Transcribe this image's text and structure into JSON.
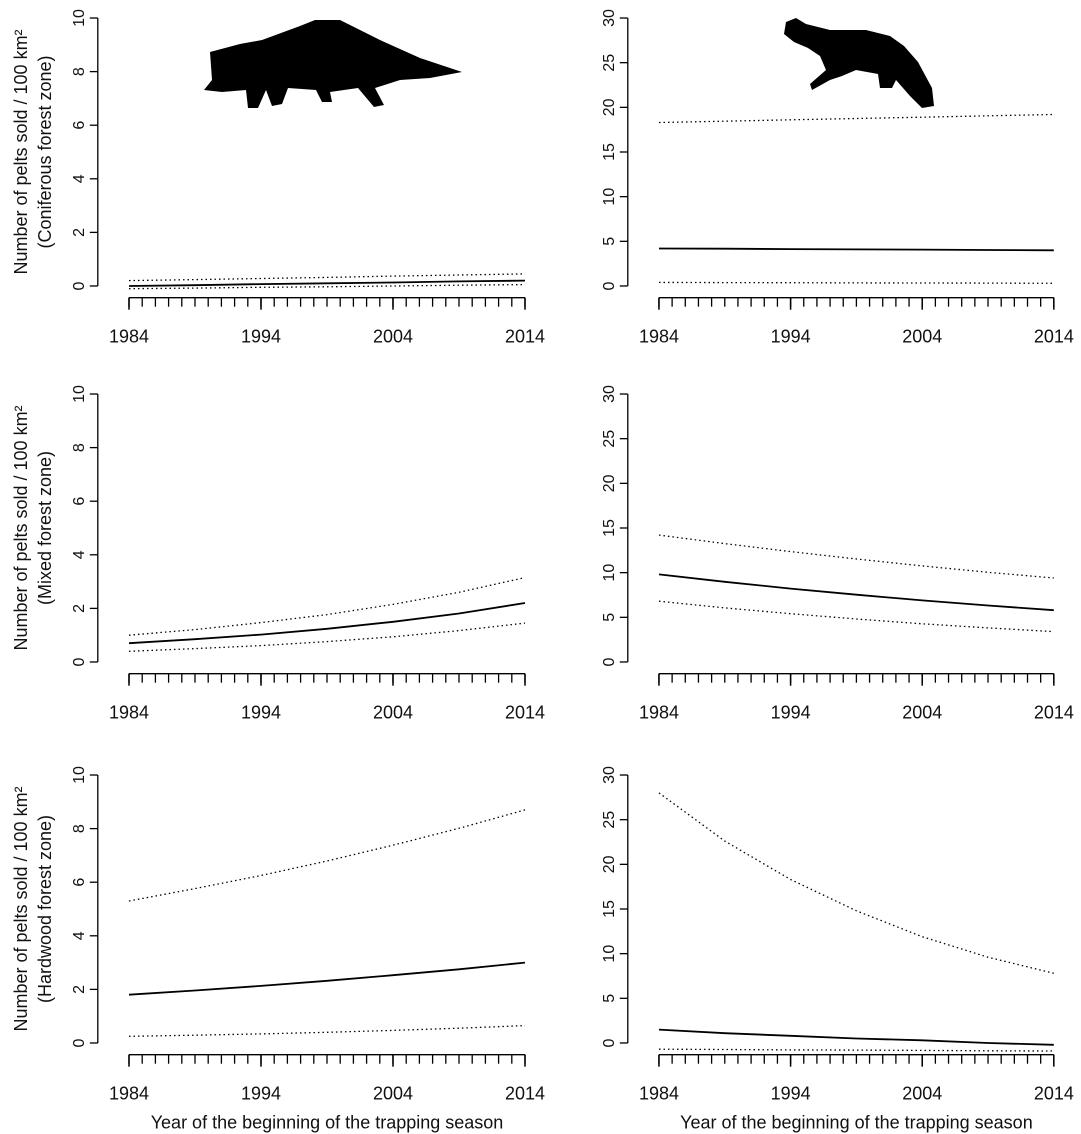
{
  "chart_data": [
    {
      "type": "line",
      "ylabel": [
        "Number of pelts sold / 100 km²",
        "(Coniferous forest zone)"
      ],
      "x": [
        1984,
        1989,
        1994,
        1999,
        2004,
        2009,
        2014
      ],
      "series": [
        {
          "dash": "solid",
          "values": [
            0,
            0.03,
            0.07,
            0.1,
            0.13,
            0.17,
            0.2
          ]
        },
        {
          "dash": "dotted",
          "values": [
            0.2,
            0.24,
            0.28,
            0.32,
            0.37,
            0.41,
            0.45
          ]
        },
        {
          "dash": "dotted",
          "values": [
            -0.1,
            -0.08,
            -0.05,
            -0.03,
            0,
            0.03,
            0.05
          ]
        }
      ],
      "xlim": [
        1983,
        2015
      ],
      "ylim": [
        -0.4,
        10.4
      ],
      "xticks": [
        1984,
        1994,
        2004,
        2014
      ],
      "xminorticks": [
        1984,
        1985,
        1986,
        1987,
        1988,
        1989,
        1990,
        1991,
        1992,
        1993,
        1994,
        1995,
        1996,
        1997,
        1998,
        1999,
        2000,
        2001,
        2002,
        2003,
        2004,
        2005,
        2006,
        2007,
        2008,
        2009,
        2010,
        2011,
        2012,
        2013,
        2014
      ],
      "yticks": [
        0,
        2,
        4,
        6,
        8,
        10
      ]
    },
    {
      "type": "line",
      "x": [
        1984,
        1989,
        1994,
        1999,
        2004,
        2009,
        2014
      ],
      "series": [
        {
          "dash": "solid",
          "values": [
            4.2,
            4.17,
            4.13,
            4.1,
            4.07,
            4.03,
            4.0
          ]
        },
        {
          "dash": "dotted",
          "values": [
            18.3,
            18.45,
            18.6,
            18.75,
            18.9,
            19.05,
            19.2
          ]
        },
        {
          "dash": "dotted",
          "values": [
            0.4,
            0.38,
            0.37,
            0.35,
            0.33,
            0.32,
            0.3
          ]
        }
      ],
      "xlim": [
        1983,
        2015
      ],
      "ylim": [
        -1.2,
        31.2
      ],
      "xticks": [
        1984,
        1994,
        2004,
        2014
      ],
      "xminorticks": [
        1984,
        1985,
        1986,
        1987,
        1988,
        1989,
        1990,
        1991,
        1992,
        1993,
        1994,
        1995,
        1996,
        1997,
        1998,
        1999,
        2000,
        2001,
        2002,
        2003,
        2004,
        2005,
        2006,
        2007,
        2008,
        2009,
        2010,
        2011,
        2012,
        2013,
        2014
      ],
      "yticks": [
        0,
        5,
        10,
        15,
        20,
        25,
        30
      ]
    },
    {
      "type": "line",
      "ylabel": [
        "Number of pelts sold / 100 km²",
        "(Mixed forest zone)"
      ],
      "x": [
        1984,
        1989,
        1994,
        1999,
        2004,
        2009,
        2014
      ],
      "series": [
        {
          "dash": "solid",
          "values": [
            0.7,
            0.85,
            1.02,
            1.24,
            1.5,
            1.81,
            2.2
          ]
        },
        {
          "dash": "dotted",
          "values": [
            1.0,
            1.21,
            1.47,
            1.77,
            2.15,
            2.6,
            3.15
          ]
        },
        {
          "dash": "dotted",
          "values": [
            0.4,
            0.5,
            0.61,
            0.76,
            0.94,
            1.17,
            1.45
          ]
        }
      ],
      "xlim": [
        1983,
        2015
      ],
      "ylim": [
        -0.4,
        10.4
      ],
      "xticks": [
        1984,
        1994,
        2004,
        2014
      ],
      "xminorticks": [
        1984,
        1985,
        1986,
        1987,
        1988,
        1989,
        1990,
        1991,
        1992,
        1993,
        1994,
        1995,
        1996,
        1997,
        1998,
        1999,
        2000,
        2001,
        2002,
        2003,
        2004,
        2005,
        2006,
        2007,
        2008,
        2009,
        2010,
        2011,
        2012,
        2013,
        2014
      ],
      "yticks": [
        0,
        2,
        4,
        6,
        8,
        10
      ]
    },
    {
      "type": "line",
      "x": [
        1984,
        1989,
        1994,
        1999,
        2004,
        2009,
        2014
      ],
      "series": [
        {
          "dash": "solid",
          "values": [
            9.8,
            8.98,
            8.22,
            7.53,
            6.9,
            6.32,
            5.8
          ]
        },
        {
          "dash": "dotted",
          "values": [
            14.2,
            13.25,
            12.36,
            11.53,
            10.76,
            10.04,
            9.4
          ]
        },
        {
          "dash": "dotted",
          "values": [
            6.8,
            6.06,
            5.4,
            4.81,
            4.28,
            3.82,
            3.4
          ]
        }
      ],
      "xlim": [
        1983,
        2015
      ],
      "ylim": [
        -1.2,
        31.2
      ],
      "xticks": [
        1984,
        1994,
        2004,
        2014
      ],
      "xminorticks": [
        1984,
        1985,
        1986,
        1987,
        1988,
        1989,
        1990,
        1991,
        1992,
        1993,
        1994,
        1995,
        1996,
        1997,
        1998,
        1999,
        2000,
        2001,
        2002,
        2003,
        2004,
        2005,
        2006,
        2007,
        2008,
        2009,
        2010,
        2011,
        2012,
        2013,
        2014
      ],
      "yticks": [
        0,
        5,
        10,
        15,
        20,
        25,
        30
      ]
    },
    {
      "type": "line",
      "ylabel": [
        "Number of pelts sold / 100 km²",
        "(Hardwood forest zone)"
      ],
      "xlabel": "Year of the beginning of the trapping season",
      "x": [
        1984,
        1989,
        1994,
        1999,
        2004,
        2009,
        2014
      ],
      "series": [
        {
          "dash": "solid",
          "values": [
            1.8,
            1.96,
            2.13,
            2.32,
            2.53,
            2.75,
            3.0
          ]
        },
        {
          "dash": "dotted",
          "values": [
            5.3,
            5.76,
            6.25,
            6.79,
            7.38,
            8.01,
            8.7
          ]
        },
        {
          "dash": "dotted",
          "values": [
            0.25,
            0.29,
            0.34,
            0.4,
            0.47,
            0.55,
            0.65
          ]
        }
      ],
      "xlim": [
        1983,
        2015
      ],
      "ylim": [
        -0.4,
        10.4
      ],
      "xticks": [
        1984,
        1994,
        2004,
        2014
      ],
      "xminorticks": [
        1984,
        1985,
        1986,
        1987,
        1988,
        1989,
        1990,
        1991,
        1992,
        1993,
        1994,
        1995,
        1996,
        1997,
        1998,
        1999,
        2000,
        2001,
        2002,
        2003,
        2004,
        2005,
        2006,
        2007,
        2008,
        2009,
        2010,
        2011,
        2012,
        2013,
        2014
      ],
      "yticks": [
        0,
        2,
        4,
        6,
        8,
        10
      ]
    },
    {
      "type": "line",
      "xlabel": "Year of the beginning of the trapping season",
      "x": [
        1984,
        1989,
        1994,
        1999,
        2004,
        2009,
        2014
      ],
      "series": [
        {
          "dash": "solid",
          "values": [
            1.5,
            1.1,
            0.8,
            0.5,
            0.3,
            0.0,
            -0.2
          ]
        },
        {
          "dash": "dotted",
          "values": [
            28,
            22.6,
            18.3,
            14.8,
            11.9,
            9.6,
            7.8
          ]
        },
        {
          "dash": "dotted",
          "values": [
            -0.7,
            -0.73,
            -0.77,
            -0.8,
            -0.83,
            -0.87,
            -0.9
          ]
        }
      ],
      "xlim": [
        1983,
        2015
      ],
      "ylim": [
        -1.2,
        31.2
      ],
      "xticks": [
        1984,
        1994,
        2004,
        2014
      ],
      "xminorticks": [
        1984,
        1985,
        1986,
        1987,
        1988,
        1989,
        1990,
        1991,
        1992,
        1993,
        1994,
        1995,
        1996,
        1997,
        1998,
        1999,
        2000,
        2001,
        2002,
        2003,
        2004,
        2005,
        2006,
        2007,
        2008,
        2009,
        2010,
        2011,
        2012,
        2013,
        2014
      ],
      "yticks": [
        0,
        5,
        10,
        15,
        20,
        25,
        30
      ]
    }
  ]
}
